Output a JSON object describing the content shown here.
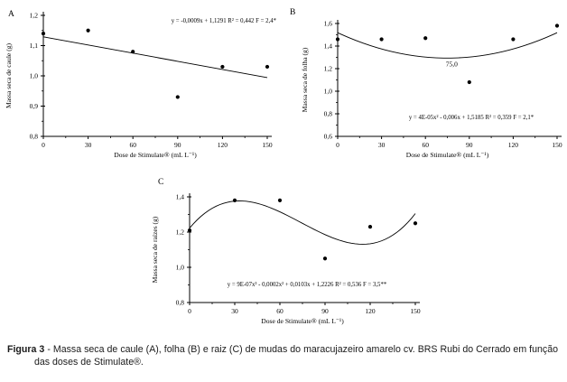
{
  "figure_caption": {
    "label": "Figura 3",
    "text": "- Massa seca de caule (A), folha (B) e raiz (C) de mudas do maracujazeiro amarelo cv. BRS Rubi do Cerrado em função das doses de Stimulate®."
  },
  "colors": {
    "ink": "#000000",
    "background": "#ffffff"
  },
  "chart_data": [
    {
      "id": "A",
      "type": "scatter",
      "panel_label": "A",
      "ylabel": "Massa seca de caule (g)",
      "xlabel": "Dose de Stimulate® (mL L⁻¹)",
      "x": [
        0,
        30,
        60,
        90,
        120,
        150
      ],
      "y": [
        1.14,
        1.15,
        1.08,
        0.93,
        1.03,
        1.03
      ],
      "xlim": [
        0,
        150
      ],
      "ylim": [
        0.8,
        1.2
      ],
      "x_ticks": [
        0,
        30,
        60,
        90,
        120,
        150
      ],
      "x_tick_labels": [
        "0",
        "30",
        "60",
        "90",
        "120",
        "150"
      ],
      "x_minor_step": 15,
      "y_ticks": [
        0.8,
        0.9,
        1.0,
        1.1,
        1.2
      ],
      "y_tick_labels": [
        "0,8",
        "0,9",
        "1,0",
        "1,1",
        "1,2"
      ],
      "y_minor_step": 0.05,
      "equation": "y = -0,0009x + 1,1291 R² = 0,442 F = 2,4*",
      "trendline": {
        "kind": "polynomial",
        "coefficients": [
          1.1291,
          -0.0009
        ]
      },
      "marker": "filled-circle",
      "legend": "none",
      "grid": "off"
    },
    {
      "id": "B",
      "type": "scatter",
      "panel_label": "B",
      "ylabel": "Massa seca de folha (g)",
      "xlabel": "Dose de Stimulate® (mL L⁻¹)",
      "x": [
        0,
        30,
        60,
        90,
        120,
        150
      ],
      "y": [
        1.46,
        1.46,
        1.47,
        1.08,
        1.46,
        1.58
      ],
      "xlim": [
        0,
        150
      ],
      "ylim": [
        0.6,
        1.6
      ],
      "x_ticks": [
        0,
        30,
        60,
        90,
        120,
        150
      ],
      "x_tick_labels": [
        "0",
        "30",
        "60",
        "90",
        "120",
        "150"
      ],
      "x_minor_step": 15,
      "y_ticks": [
        0.6,
        0.8,
        1.0,
        1.2,
        1.4,
        1.6
      ],
      "y_tick_labels": [
        "0,6",
        "0,8",
        "1,0",
        "1,2",
        "1,4",
        "1,6"
      ],
      "y_minor_step": 0.1,
      "equation": "y = 4E-05x² - 0,006x + 1,5185 R² = 0,359 F = 2,1*",
      "trendline": {
        "kind": "polynomial",
        "coefficients": [
          1.5185,
          -0.006,
          4e-05
        ]
      },
      "annotation": {
        "text": "75,0",
        "x": 78,
        "y": 1.22
      },
      "marker": "filled-circle",
      "legend": "none",
      "grid": "off"
    },
    {
      "id": "C",
      "type": "scatter",
      "panel_label": "C",
      "ylabel": "Massa seca de raízes (g)",
      "xlabel": "Dose de Stimulate® (mL L⁻¹)",
      "x": [
        0,
        30,
        60,
        90,
        120,
        150
      ],
      "y": [
        1.21,
        1.38,
        1.38,
        1.05,
        1.23,
        1.25
      ],
      "xlim": [
        0,
        150
      ],
      "ylim": [
        0.8,
        1.4
      ],
      "x_ticks": [
        0,
        30,
        60,
        90,
        120,
        150
      ],
      "x_tick_labels": [
        "0",
        "30",
        "60",
        "90",
        "120",
        "150"
      ],
      "x_minor_step": 15,
      "y_ticks": [
        0.8,
        1.0,
        1.2,
        1.4
      ],
      "y_tick_labels": [
        "0,8",
        "1,0",
        "1,2",
        "1,4"
      ],
      "y_minor_step": 0.1,
      "equation": "y = 9E-07x³ - 0,0002x² + 0,0103x + 1,2226 R² = 0,536 F = 3,5**",
      "trendline": {
        "kind": "polynomial",
        "coefficients": [
          1.2226,
          0.0103,
          -0.0002,
          9e-07
        ]
      },
      "marker": "filled-circle",
      "legend": "none",
      "grid": "off"
    }
  ]
}
